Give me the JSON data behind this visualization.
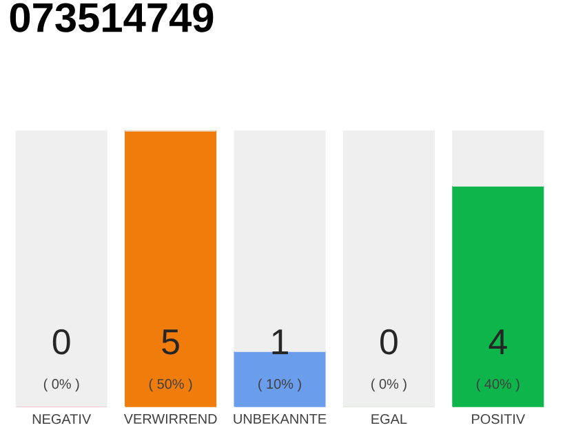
{
  "chart_data": {
    "type": "bar",
    "title": "073514749",
    "categories": [
      "NEGATIV",
      "VERWIRREND",
      "UNBEKANNTE",
      "EGAL",
      "POSITIV"
    ],
    "stacked": true,
    "series": [
      {
        "colors": [
          "#e8183c",
          "#f07d0b",
          "#6a9eed",
          "#7ac36a",
          "#0db54b"
        ],
        "values": [
          0,
          5,
          1,
          0,
          4
        ],
        "value_labels": [
          "0",
          "5",
          "1",
          "0",
          "4"
        ]
      },
      {
        "color": "#efefef",
        "values": [
          5,
          0,
          4,
          5,
          1
        ]
      }
    ],
    "annotations": [
      "( 0% )",
      "( 50% )",
      "( 10% )",
      "( 0% )",
      "( 40% )"
    ]
  }
}
